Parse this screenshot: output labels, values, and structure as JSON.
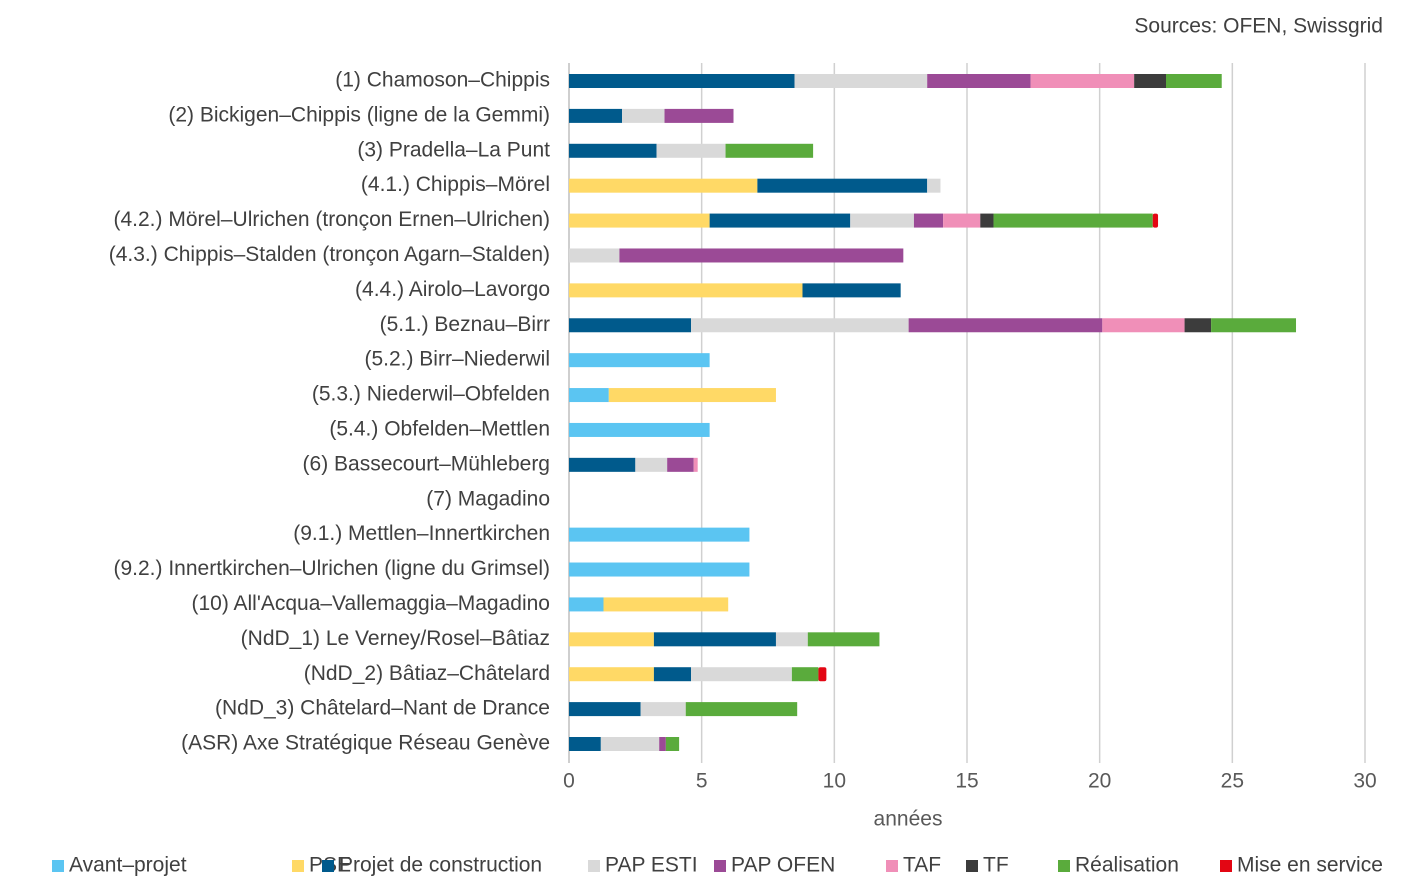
{
  "chart_data": {
    "type": "stacked_barh",
    "source": "Sources: OFEN, Swissgrid",
    "xlabel": "années",
    "categories": [
      "(1) Chamoson–Chippis",
      "(2) Bickigen–Chippis (ligne de la Gemmi)",
      "(3) Pradella–La Punt",
      "(4.1.) Chippis–Mörel",
      "(4.2.) Mörel–Ulrichen (tronçon Ernen–Ulrichen)",
      "(4.3.) Chippis–Stalden (tronçon Agarn–Stalden)",
      "(4.4.) Airolo–Lavorgo",
      "(5.1.) Beznau–Birr",
      "(5.2.) Birr–Niederwil",
      "(5.3.) Niederwil–Obfelden",
      "(5.4.) Obfelden–Mettlen",
      "(6) Bassecourt–Mühleberg",
      "(7) Magadino",
      "(9.1.) Mettlen–Innertkirchen",
      "(9.2.) Innertkirchen–Ulrichen (ligne du Grimsel)",
      "(10) All'Acqua–Vallemaggia–Magadino",
      "(NdD_1) Le Verney/Rosel–Bâtiaz",
      "(NdD_2) Bâtiaz–Châtelard",
      "(NdD_3) Châtelard–Nant de Drance",
      "(ASR) Axe Stratégique Réseau Genève"
    ],
    "series": [
      {
        "name": "Avant–projet",
        "color": "#5bc5f2",
        "values": [
          null,
          null,
          null,
          null,
          null,
          null,
          null,
          null,
          5.3,
          1.5,
          5.3,
          null,
          null,
          6.8,
          6.8,
          1.3,
          null,
          null,
          null,
          null
        ]
      },
      {
        "name": "PSE",
        "color": "#ffd966",
        "values": [
          null,
          null,
          null,
          7.1,
          5.3,
          null,
          8.8,
          null,
          null,
          6.3,
          null,
          null,
          null,
          null,
          null,
          4.7,
          3.2,
          3.2,
          null,
          null
        ]
      },
      {
        "name": "Projet de construction",
        "color": "#005a8c",
        "values": [
          8.5,
          2.0,
          3.3,
          6.4,
          5.3,
          null,
          3.7,
          4.6,
          null,
          null,
          null,
          2.5,
          null,
          null,
          null,
          null,
          4.6,
          1.4,
          2.7,
          1.2
        ]
      },
      {
        "name": "PAP ESTI",
        "color": "#d9d9d9",
        "values": [
          5.0,
          1.6,
          2.6,
          0.5,
          2.4,
          1.9,
          null,
          8.2,
          null,
          null,
          null,
          1.2,
          null,
          null,
          null,
          null,
          1.2,
          3.8,
          1.7,
          2.2
        ]
      },
      {
        "name": "PAP OFEN",
        "color": "#9b4a96",
        "values": [
          3.9,
          2.6,
          null,
          null,
          1.1,
          10.7,
          null,
          7.3,
          null,
          null,
          null,
          1.0,
          null,
          null,
          null,
          null,
          null,
          null,
          null,
          0.25
        ]
      },
      {
        "name": "TAF",
        "color": "#f08fb8",
        "values": [
          3.9,
          null,
          null,
          null,
          1.4,
          null,
          null,
          3.1,
          null,
          null,
          null,
          0.15,
          null,
          null,
          null,
          null,
          null,
          null,
          null,
          null
        ]
      },
      {
        "name": "TF",
        "color": "#3c3c3c",
        "values": [
          1.2,
          null,
          null,
          null,
          0.5,
          null,
          null,
          1.0,
          null,
          null,
          null,
          null,
          null,
          null,
          null,
          null,
          null,
          null,
          null,
          null
        ]
      },
      {
        "name": "Réalisation",
        "color": "#5aab3c",
        "values": [
          2.1,
          null,
          3.3,
          null,
          6.0,
          null,
          null,
          3.2,
          null,
          null,
          null,
          null,
          null,
          null,
          null,
          null,
          2.7,
          1.0,
          4.2,
          0.5
        ]
      },
      {
        "name": "Mise en service",
        "color": "#e30613",
        "values": [
          null,
          null,
          null,
          null,
          0.2,
          null,
          null,
          null,
          null,
          null,
          null,
          null,
          null,
          null,
          null,
          null,
          null,
          0.3,
          null,
          null
        ]
      }
    ],
    "xlim": [
      0,
      30
    ],
    "xticks": [
      0,
      5,
      10,
      15,
      20,
      25,
      30
    ],
    "grid": true,
    "legend": "bottom"
  }
}
